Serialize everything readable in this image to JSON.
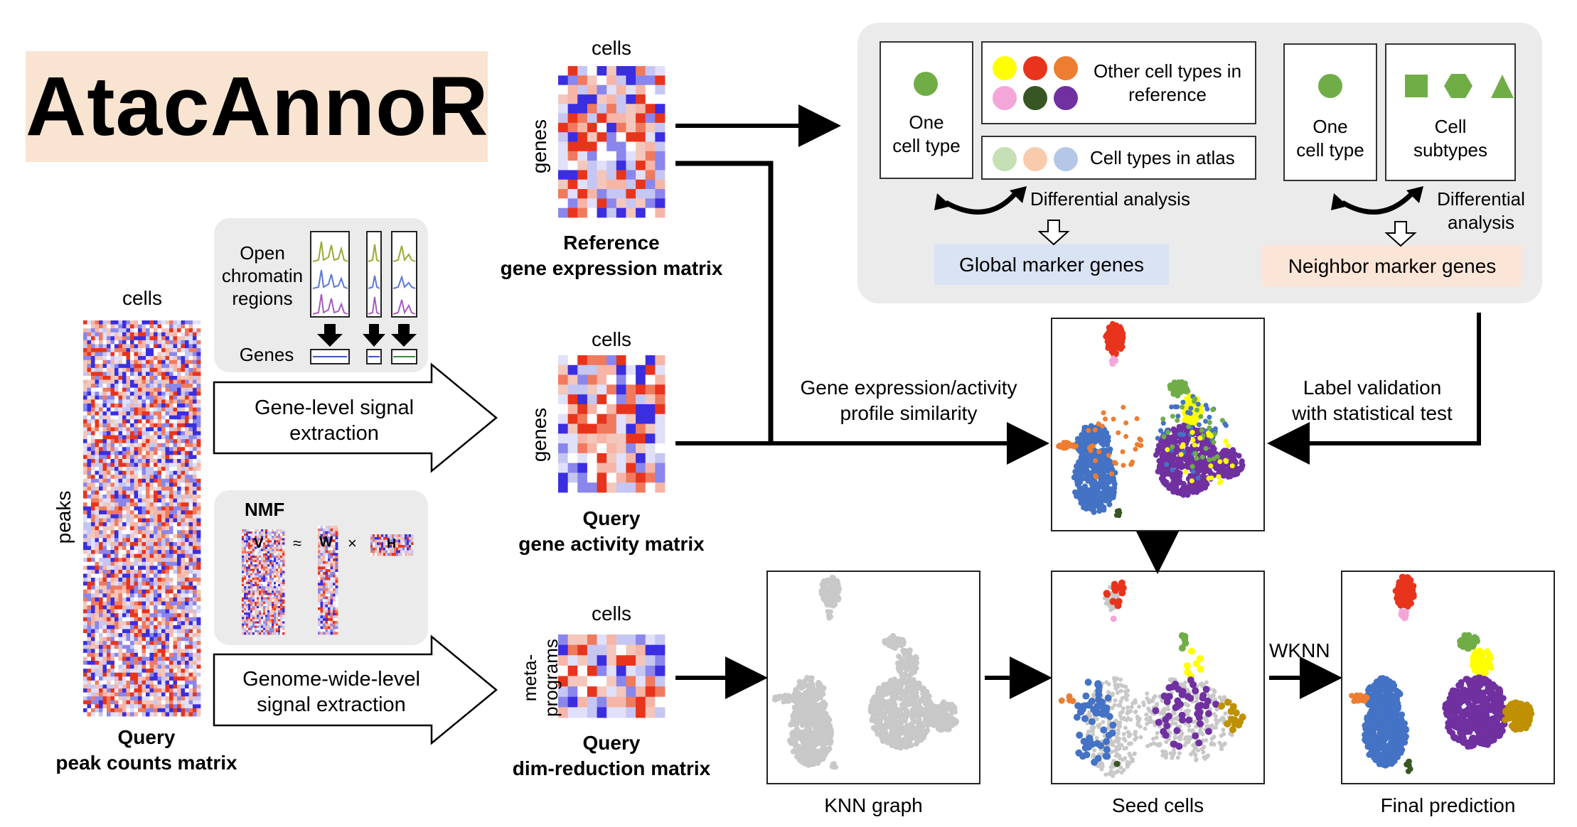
{
  "title": "AtacAnnoR",
  "peak_matrix": {
    "cells_label": "cells",
    "peaks_label": "peaks",
    "caption_line1": "Query",
    "caption_line2": "peak counts matrix"
  },
  "gene_level_box": {
    "open_chromatin_label": "Open\nchromatin\nregions",
    "genes_label": "Genes",
    "arrow_text": "Gene-level signal\nextraction"
  },
  "nmf_box": {
    "nmf_label": "NMF",
    "v_label": "V",
    "approx_symbol": "≈",
    "w_label": "W",
    "times_symbol": "×",
    "h_label": "H",
    "arrow_text": "Genome-wide-level\nsignal extraction"
  },
  "reference_matrix": {
    "cells_label": "cells",
    "genes_label": "genes",
    "caption_line1": "Reference",
    "caption_line2": "gene expression matrix"
  },
  "activity_matrix": {
    "cells_label": "cells",
    "genes_label": "genes",
    "caption_line1": "Query",
    "caption_line2": "gene activity matrix"
  },
  "dimred_matrix": {
    "cells_label": "cells",
    "metaprograms_label": "meta-\nprograms",
    "caption_line1": "Query",
    "caption_line2": "dim-reduction matrix"
  },
  "marker_panel": {
    "one_cell_type_1": "One\ncell type",
    "other_cell_types": "Other cell types in\nreference",
    "cell_types_in_atlas": "Cell types in atlas",
    "differential_analysis_1": "Differential analysis",
    "global_marker_genes": "Global marker genes",
    "one_cell_type_2": "One\ncell type",
    "cell_subtypes": "Cell\nsubtypes",
    "differential_analysis_2": "Differential\nanalysis",
    "neighbor_marker_genes": "Neighbor marker genes"
  },
  "similarity_text": "Gene expression/activity\nprofile similarity",
  "validation_text": "Label validation\nwith statistical test",
  "wknn_label": "WKNN",
  "knn_graph_label": "KNN graph",
  "seed_cells_label": "Seed cells",
  "final_prediction_label": "Final prediction",
  "colors": {
    "red": "#e8341c",
    "blue": "#4472c4",
    "purple": "#7030a0",
    "yellow": "#ffff00",
    "green": "#70ad47",
    "orange": "#ed7d31",
    "pink": "#f4a6d8",
    "darkgreen": "#375623",
    "gold": "#bf9000",
    "grey": "#c8c8c8",
    "title_bg": "#f9e4d2",
    "global_bg": "#dae3f3",
    "neighbor_bg": "#fbe5d6"
  }
}
